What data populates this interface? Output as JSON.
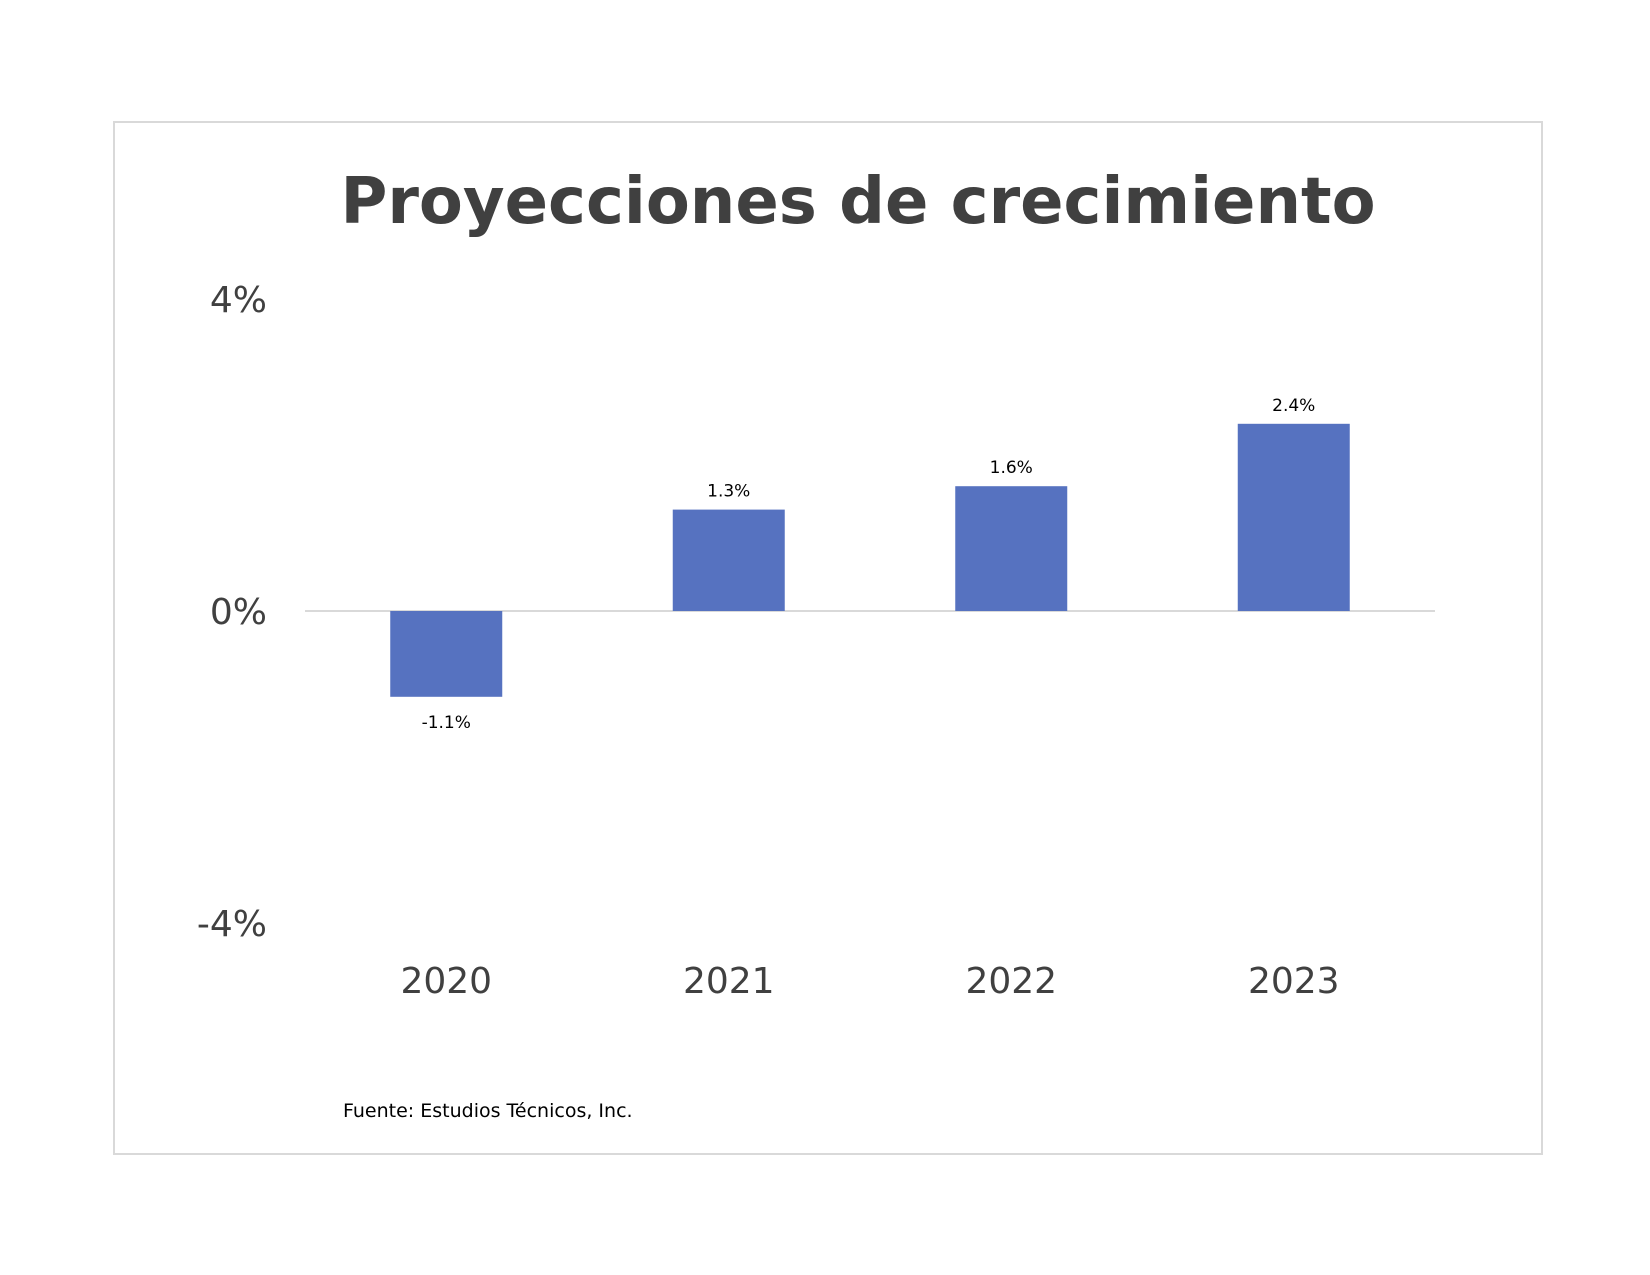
{
  "chart_data": {
    "type": "bar",
    "title": "Proyecciones de crecimiento",
    "categories": [
      "2020",
      "2021",
      "2022",
      "2023"
    ],
    "values": [
      -1.1,
      1.3,
      1.6,
      2.4
    ],
    "data_labels": [
      "-1.1%",
      "1.3%",
      "1.6%",
      "2.4%"
    ],
    "y_ticks": [
      {
        "value": 4,
        "label": "4%"
      },
      {
        "value": 0,
        "label": "0%"
      },
      {
        "value": -4,
        "label": "-4%"
      }
    ],
    "ylim": [
      -4,
      4
    ],
    "xlabel": "",
    "ylabel": "",
    "grid": false,
    "legend": "none",
    "bar_color": "#5672c0",
    "baseline_color": "#d9d9d9"
  },
  "source_note": "Fuente: Estudios Técnicos, Inc."
}
